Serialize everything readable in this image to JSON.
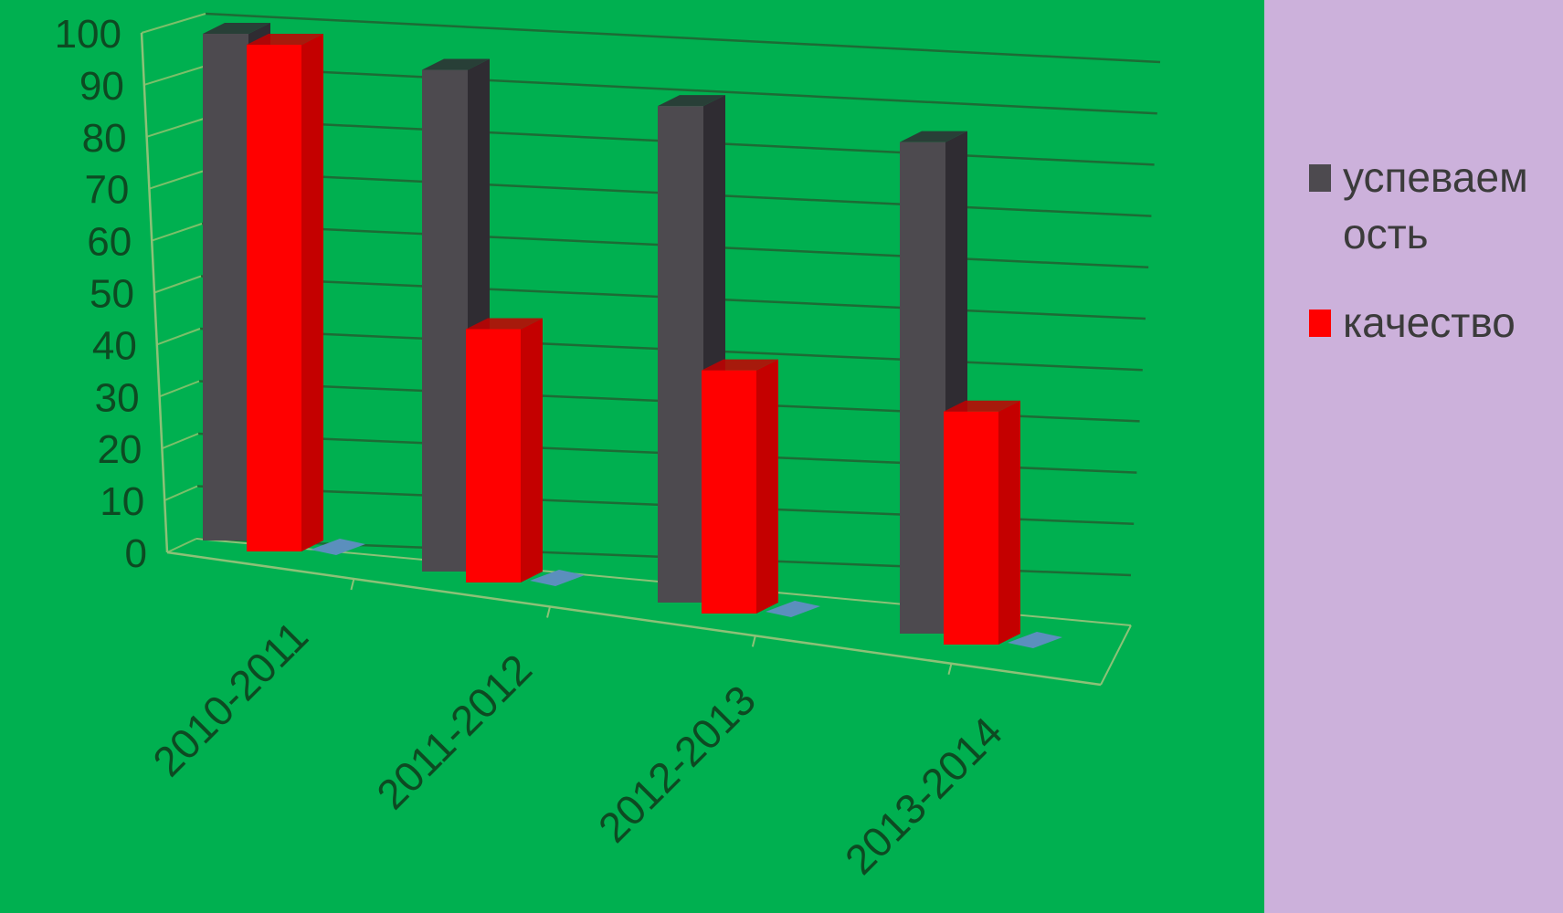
{
  "chart_data": {
    "type": "bar",
    "categories": [
      "2010-2011",
      "2011-2012",
      "2012-2013",
      "2013-2014"
    ],
    "series": [
      {
        "name": "успеваемость",
        "legend_lines": [
          "успеваем",
          "ость"
        ],
        "color": "#4d4a4f",
        "values": [
          100,
          99,
          98,
          97
        ]
      },
      {
        "name": "качество",
        "legend_lines": [
          "качество"
        ],
        "color": "#ff0000",
        "values": [
          100,
          50,
          48,
          46
        ]
      }
    ],
    "y_ticks": [
      "0",
      "10",
      "20",
      "30",
      "40",
      "50",
      "60",
      "70",
      "80",
      "90",
      "100"
    ],
    "ylim": [
      0,
      100
    ],
    "grid": true,
    "legend": "right",
    "colors": {
      "plot_background": "#00b050",
      "legend_background": "#ccb1db",
      "gridline": "#1d6b35",
      "axis_text": "#0d4a22",
      "floor_mark": "#5b8fbd"
    }
  }
}
